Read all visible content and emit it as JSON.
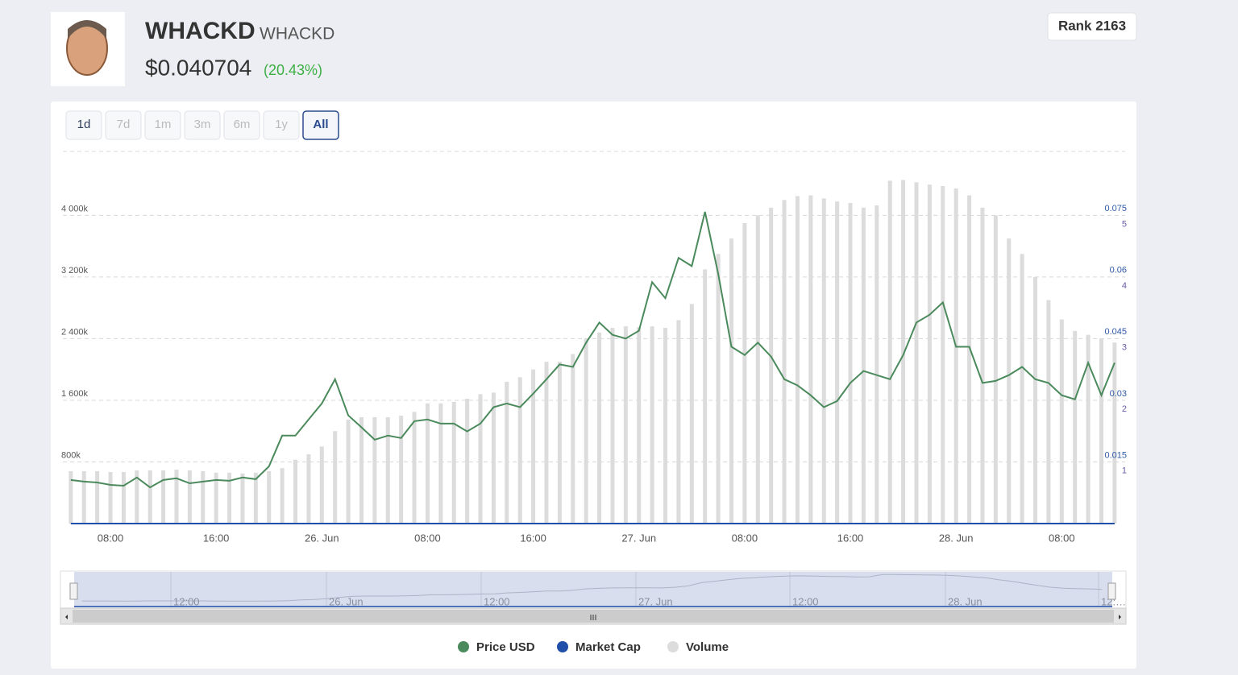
{
  "header": {
    "name": "WHACKD",
    "symbol": "WHACKD",
    "price": "$0.040704",
    "change": "(20.43%)",
    "rank": "Rank 2163"
  },
  "ranges": [
    "1d",
    "7d",
    "1m",
    "3m",
    "6m",
    "1y",
    "All"
  ],
  "navigator": {
    "labels": [
      "12:00",
      "26. Jun",
      "12:00",
      "27. Jun",
      "12:00",
      "28. Jun",
      "12:…"
    ]
  },
  "chart_data": {
    "type": "line",
    "x": [
      5,
      6,
      7,
      8,
      9,
      10,
      11,
      12,
      13,
      14,
      15,
      16,
      17,
      18,
      19,
      20,
      21,
      22,
      23,
      24,
      25,
      26,
      27,
      28,
      29,
      30,
      31,
      32,
      33,
      34,
      35,
      36,
      37,
      38,
      39,
      40,
      41,
      42,
      43,
      44,
      45,
      46,
      47,
      48,
      49,
      50,
      51,
      52,
      53,
      54,
      55,
      56,
      57,
      58,
      59,
      60,
      61,
      62,
      63,
      64,
      65,
      66,
      67,
      68,
      69,
      70,
      71,
      72,
      73,
      74,
      75,
      76,
      77,
      78,
      79,
      80,
      81,
      82,
      83,
      84
    ],
    "xlim": [
      4.4,
      84.8
    ],
    "xticks": [
      {
        "value": 8,
        "label": "08:00"
      },
      {
        "value": 16,
        "label": "16:00"
      },
      {
        "value": 24,
        "label": "26. Jun"
      },
      {
        "value": 32,
        "label": "08:00"
      },
      {
        "value": 40,
        "label": "16:00"
      },
      {
        "value": 48,
        "label": "27. Jun"
      },
      {
        "value": 56,
        "label": "08:00"
      },
      {
        "value": 64,
        "label": "16:00"
      },
      {
        "value": 72,
        "label": "28. Jun"
      },
      {
        "value": 80,
        "label": "08:00"
      }
    ],
    "ylim": [
      0,
      4830000
    ],
    "yticks": [
      {
        "value": 800000,
        "label": "800k"
      },
      {
        "value": 1600000,
        "label": "1 600k"
      },
      {
        "value": 2400000,
        "label": "2 400k"
      },
      {
        "value": 3200000,
        "label": "3 200k"
      },
      {
        "value": 4000000,
        "label": "4 000k"
      }
    ],
    "y2lim": [
      0,
      0.0905
    ],
    "y2ticks": [
      0.015,
      0.03,
      0.045,
      0.06,
      0.075
    ],
    "y3lim": [
      0,
      6.04
    ],
    "y3ticks": [
      1,
      2,
      3,
      4,
      5
    ],
    "grid": true,
    "legend": "bottom",
    "series": [
      {
        "name": "Price USD",
        "color": "#4b8a5c",
        "axis": "y2",
        "type": "line",
        "values": [
          0.0106,
          0.0102,
          0.01,
          0.0094,
          0.0092,
          0.0112,
          0.0088,
          0.0106,
          0.011,
          0.0098,
          0.0102,
          0.0106,
          0.0104,
          0.0112,
          0.0108,
          0.0139,
          0.0214,
          0.0214,
          0.0253,
          0.0292,
          0.0351,
          0.0263,
          0.0234,
          0.0204,
          0.0214,
          0.0208,
          0.0249,
          0.0253,
          0.0243,
          0.0243,
          0.0224,
          0.0243,
          0.0283,
          0.0292,
          0.0283,
          0.0316,
          0.0351,
          0.0387,
          0.0381,
          0.044,
          0.0489,
          0.0459,
          0.045,
          0.0469,
          0.0587,
          0.0548,
          0.0646,
          0.0626,
          0.0758,
          0.0607,
          0.043,
          0.041,
          0.044,
          0.0406,
          0.0351,
          0.0336,
          0.0312,
          0.0283,
          0.0298,
          0.0342,
          0.0371,
          0.0361,
          0.0351,
          0.041,
          0.0489,
          0.0508,
          0.0538,
          0.043,
          0.043,
          0.0342,
          0.0347,
          0.0361,
          0.0381,
          0.0351,
          0.0342,
          0.0312,
          0.0302,
          0.0391,
          0.0312,
          0.0391
        ]
      },
      {
        "name": "Market Cap",
        "color": "#1f4fa8",
        "axis": "y3",
        "type": "line",
        "values": [
          0,
          0,
          0,
          0,
          0,
          0,
          0,
          0,
          0,
          0,
          0,
          0,
          0,
          0,
          0,
          0,
          0,
          0,
          0,
          0,
          0,
          0,
          0,
          0,
          0,
          0,
          0,
          0,
          0,
          0,
          0,
          0,
          0,
          0,
          0,
          0,
          0,
          0,
          0,
          0,
          0,
          0,
          0,
          0,
          0,
          0,
          0,
          0,
          0,
          0,
          0,
          0,
          0,
          0,
          0,
          0,
          0,
          0,
          0,
          0,
          0,
          0,
          0,
          0,
          0,
          0,
          0,
          0,
          0,
          0,
          0,
          0,
          0,
          0,
          0,
          0,
          0,
          0,
          0,
          0
        ]
      },
      {
        "name": "Volume",
        "color": "#dcdcdc",
        "axis": "y",
        "type": "column",
        "values": [
          680000,
          680000,
          680000,
          670000,
          670000,
          690000,
          690000,
          690000,
          700000,
          690000,
          680000,
          660000,
          660000,
          650000,
          660000,
          680000,
          720000,
          830000,
          900000,
          1000000,
          1200000,
          1350000,
          1380000,
          1380000,
          1380000,
          1400000,
          1450000,
          1560000,
          1560000,
          1580000,
          1620000,
          1680000,
          1700000,
          1840000,
          1900000,
          2000000,
          2100000,
          2100000,
          2200000,
          2400000,
          2480000,
          2540000,
          2560000,
          2550000,
          2560000,
          2540000,
          2640000,
          2850000,
          3300000,
          3500000,
          3700000,
          3900000,
          4000000,
          4100000,
          4200000,
          4250000,
          4260000,
          4220000,
          4180000,
          4160000,
          4100000,
          4130000,
          4450000,
          4460000,
          4430000,
          4400000,
          4380000,
          4350000,
          4260000,
          4100000,
          4000000,
          3700000,
          3500000,
          3200000,
          2900000,
          2650000,
          2500000,
          2450000,
          2400000,
          2350000
        ]
      }
    ]
  }
}
